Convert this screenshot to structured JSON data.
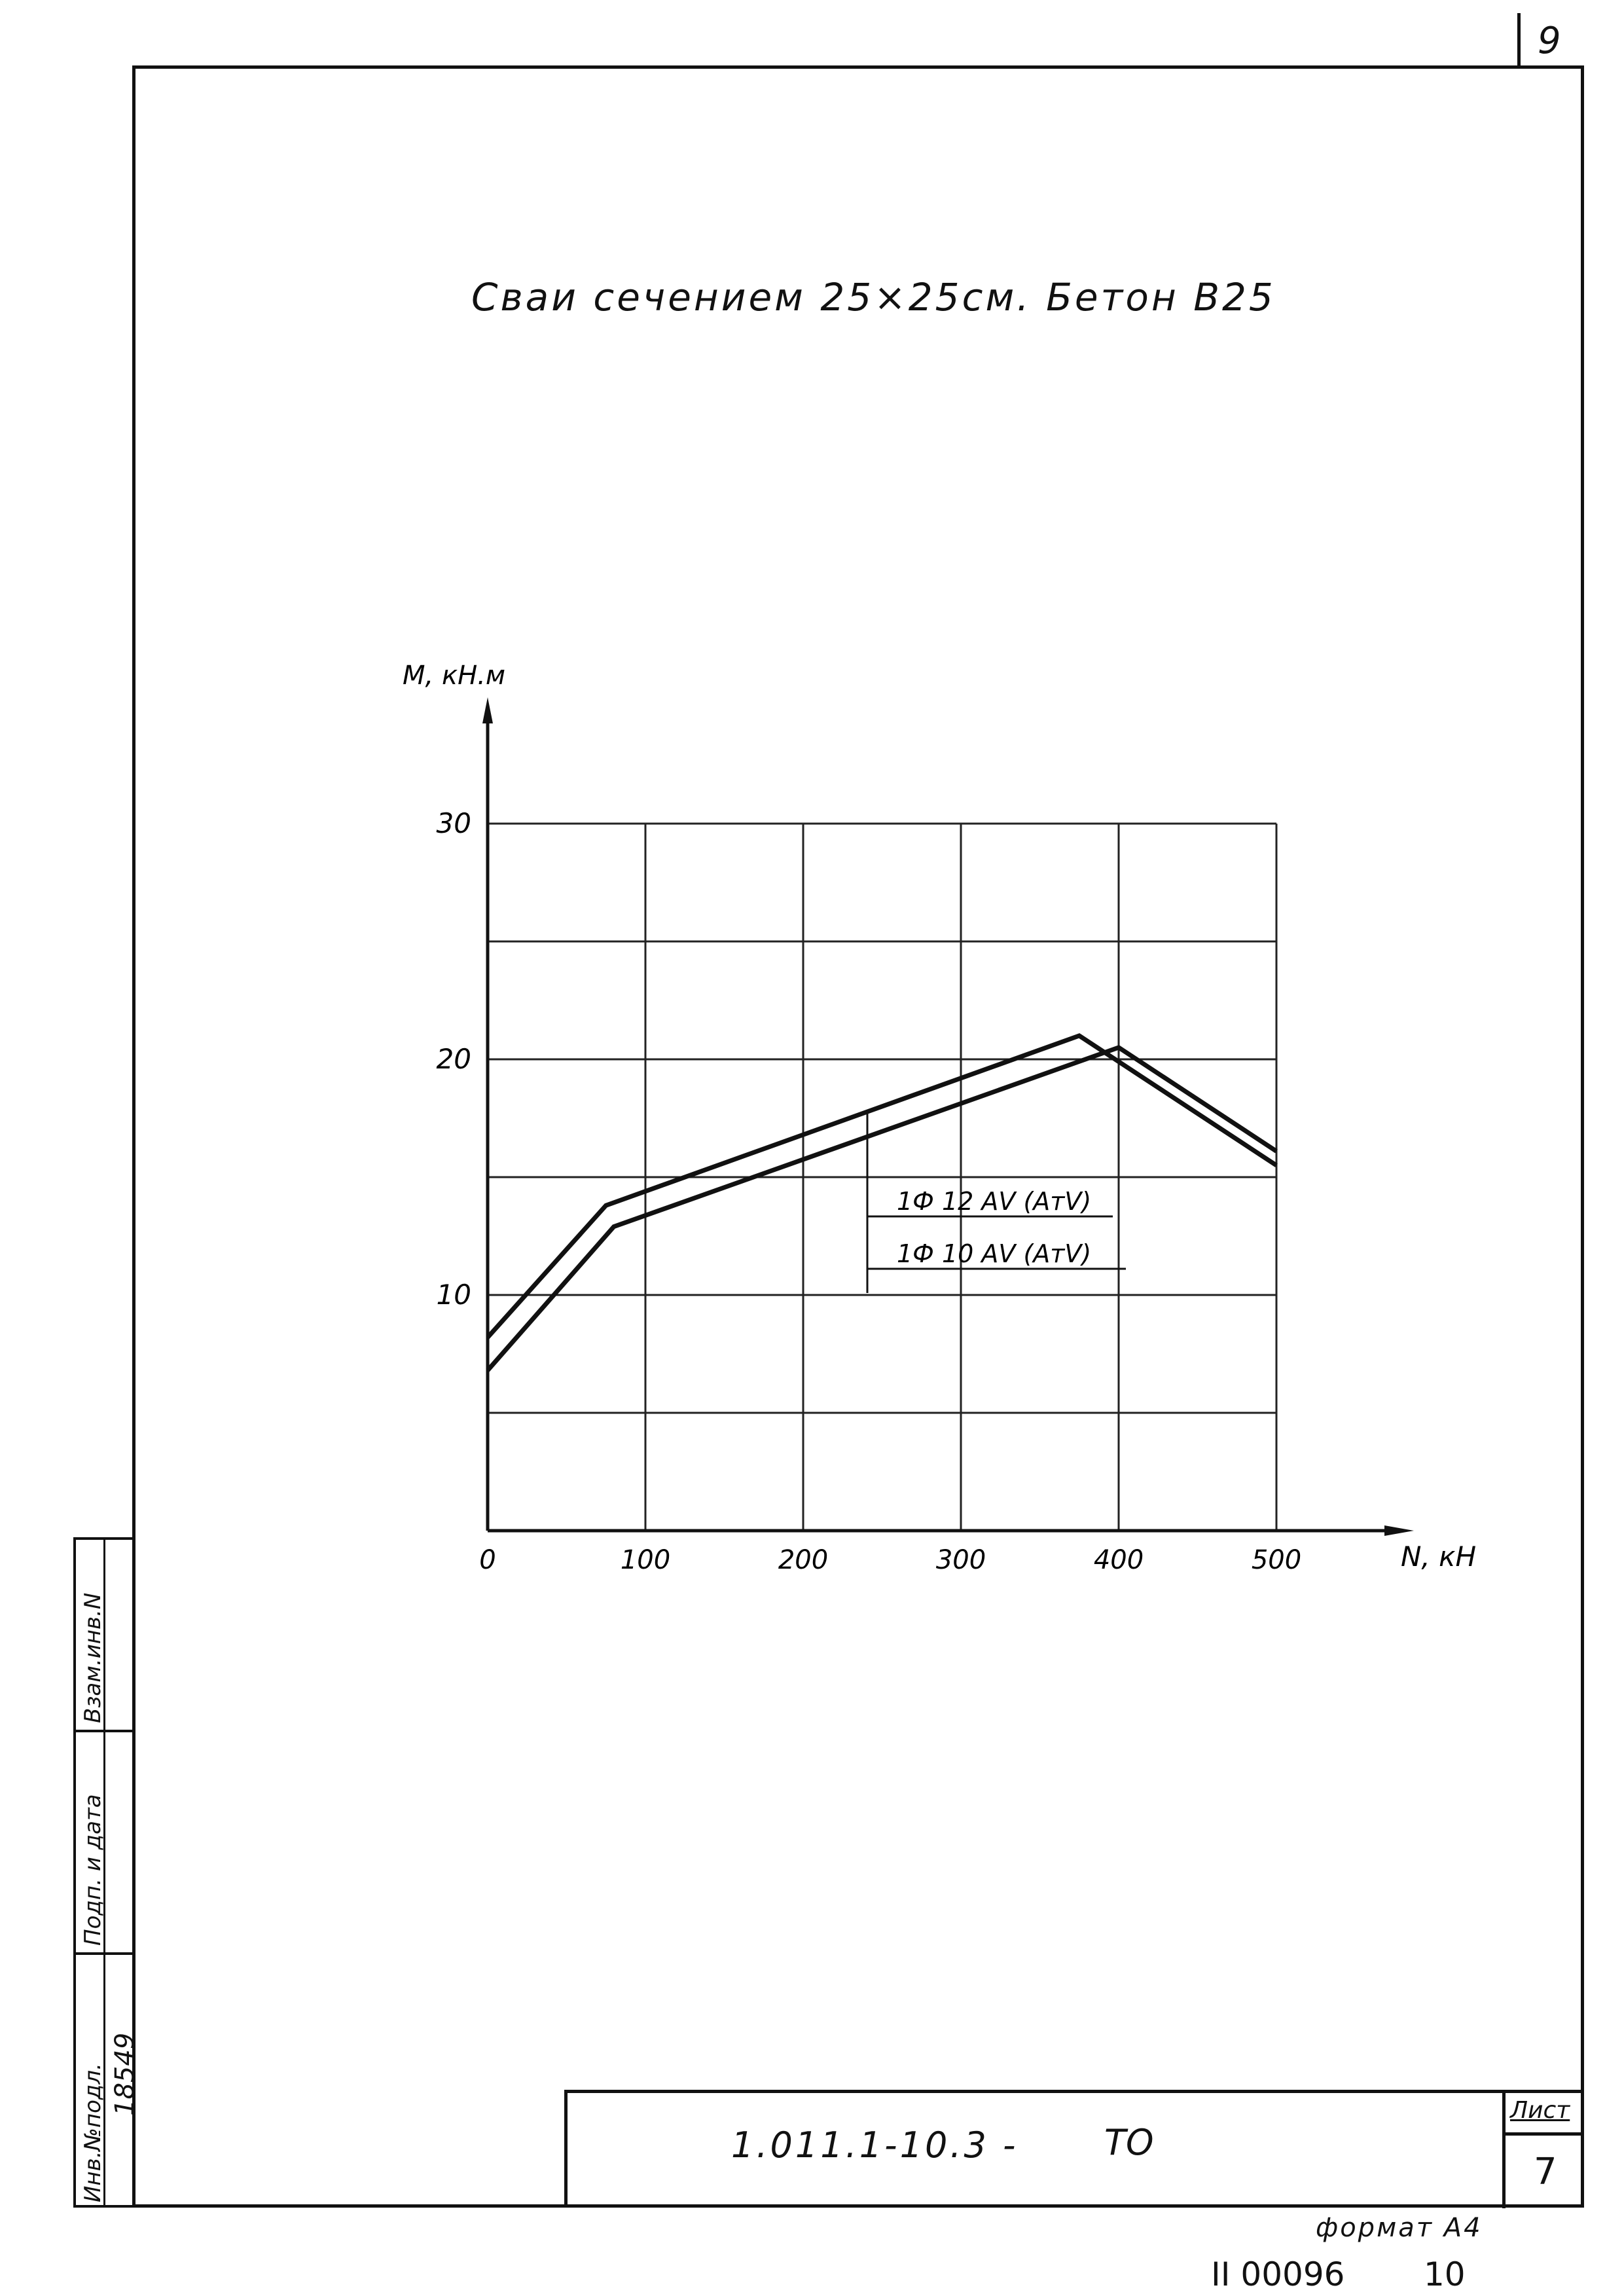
{
  "sheet_number_top": "9",
  "title": "Сваи сечением 25×25см. Бетон В25",
  "side_stamp": {
    "label_inv_subst": "Взам.инв.N",
    "label_sign_date": "Подп. и дата",
    "label_inv_orig": "Инв.№подл.",
    "inv_number": "18549"
  },
  "title_block": {
    "code": "1.011.1-10.3 -",
    "doc_type": "ТО",
    "sheet_label": "Лист",
    "sheet_value": "7"
  },
  "format_label": "формат А4",
  "archive_number": "II 00096",
  "archive_number_2": "10",
  "chart_data": {
    "type": "line",
    "ylabel": "M, кН.м",
    "xlabel": "N, кН",
    "xlim": [
      0,
      500
    ],
    "ylim": [
      0,
      30
    ],
    "x_ticks": [
      "0",
      "100",
      "200",
      "300",
      "400",
      "500"
    ],
    "y_ticks": [
      "10",
      "20",
      "30"
    ],
    "grid": true,
    "grid_x_step": 100,
    "grid_y_step": 5,
    "series": [
      {
        "name": "1Ф 12 АV (АтV)",
        "points": [
          [
            0,
            8.2
          ],
          [
            75,
            13.8
          ],
          [
            375,
            21.0
          ],
          [
            500,
            15.5
          ]
        ]
      },
      {
        "name": "1Ф 10 АV (АтV)",
        "points": [
          [
            0,
            6.8
          ],
          [
            80,
            12.9
          ],
          [
            400,
            20.5
          ],
          [
            500,
            16.1
          ]
        ]
      }
    ]
  }
}
